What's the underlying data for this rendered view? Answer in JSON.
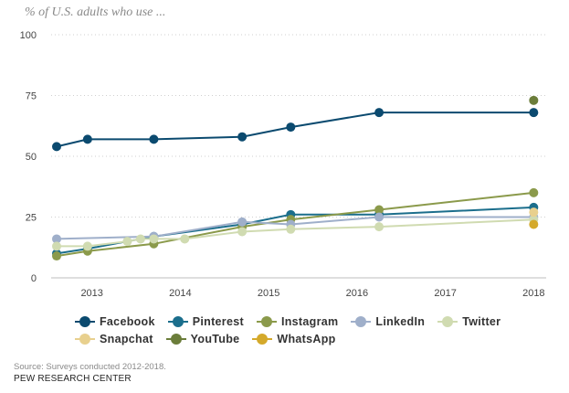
{
  "subtitle": "% of U.S. adults who use ...",
  "source": "Source: Surveys conducted 2012-2018.",
  "organization": "PEW RESEARCH CENTER",
  "chart_data": {
    "type": "line",
    "ylim": [
      0,
      100
    ],
    "yticks": [
      0,
      25,
      50,
      75,
      100
    ],
    "xlim": [
      2012.6,
      2018.1
    ],
    "xticks": [
      2013,
      2014,
      2015,
      2016,
      2017,
      2018
    ],
    "grid": "horizontal dotted",
    "legend_position": "bottom",
    "series": [
      {
        "name": "Facebook",
        "color": "#0b4a6f",
        "points": [
          [
            2012.6,
            54
          ],
          [
            2012.95,
            57
          ],
          [
            2013.7,
            57
          ],
          [
            2014.7,
            58
          ],
          [
            2015.25,
            62
          ],
          [
            2016.25,
            68
          ],
          [
            2018.0,
            68
          ]
        ]
      },
      {
        "name": "Pinterest",
        "color": "#1b6e8c",
        "points": [
          [
            2012.6,
            10
          ],
          [
            2012.95,
            12
          ],
          [
            2013.7,
            17
          ],
          [
            2014.7,
            22
          ],
          [
            2015.25,
            26
          ],
          [
            2016.25,
            26
          ],
          [
            2018.0,
            29
          ]
        ]
      },
      {
        "name": "Instagram",
        "color": "#8b9a4b",
        "points": [
          [
            2012.6,
            9
          ],
          [
            2012.95,
            11
          ],
          [
            2013.7,
            14
          ],
          [
            2014.7,
            21
          ],
          [
            2015.25,
            24
          ],
          [
            2016.25,
            28
          ],
          [
            2018.0,
            35
          ]
        ]
      },
      {
        "name": "LinkedIn",
        "color": "#9fafca",
        "points": [
          [
            2012.6,
            16
          ],
          [
            2013.7,
            17
          ],
          [
            2014.7,
            23
          ],
          [
            2015.25,
            22
          ],
          [
            2016.25,
            25
          ],
          [
            2018.0,
            25
          ]
        ]
      },
      {
        "name": "Twitter",
        "color": "#d0dbb1",
        "points": [
          [
            2012.6,
            13
          ],
          [
            2012.95,
            13
          ],
          [
            2013.4,
            15
          ],
          [
            2013.55,
            16
          ],
          [
            2013.7,
            16
          ],
          [
            2014.05,
            16
          ],
          [
            2014.7,
            19
          ],
          [
            2015.25,
            20
          ],
          [
            2016.25,
            21
          ],
          [
            2018.0,
            24
          ]
        ]
      },
      {
        "name": "Snapchat",
        "color": "#e8d08e",
        "points": [
          [
            2018.0,
            27
          ]
        ]
      },
      {
        "name": "YouTube",
        "color": "#6b7d3a",
        "points": [
          [
            2018.0,
            73
          ]
        ]
      },
      {
        "name": "WhatsApp",
        "color": "#d4a92b",
        "points": [
          [
            2018.0,
            22
          ]
        ]
      }
    ]
  }
}
